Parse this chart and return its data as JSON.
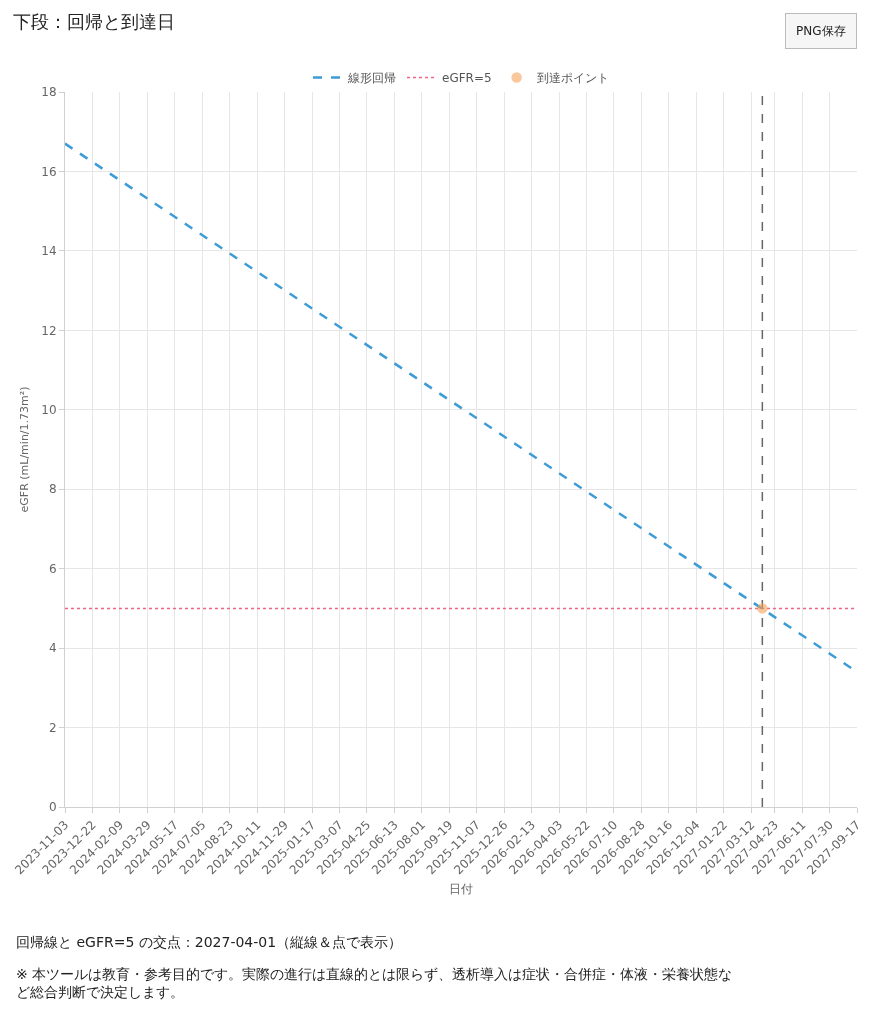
{
  "chart_data": {
    "type": "line",
    "title": "下段：回帰と到達日",
    "xlabel": "日付",
    "ylabel": "eGFR (mL/min/1.73m²)",
    "series": [
      {
        "name": "線形回帰",
        "color": "#3d9bd6",
        "line_style": "dashed",
        "marker": "none",
        "x": [
          "2023-11-03",
          "2027-09-17"
        ],
        "values": [
          16.7,
          3.4
        ]
      },
      {
        "name": "到達ポイント",
        "type": "scatter",
        "color": "#f5a35c",
        "marker": "circle",
        "x": [
          "2027-04-01"
        ],
        "values": [
          5
        ]
      }
    ],
    "ref_lines": [
      {
        "axis": "y",
        "value": 5,
        "label": "eGFR=5",
        "color": "#f06585",
        "line_style": "dotted"
      },
      {
        "axis": "x",
        "value": "2027-04-01",
        "color": "#666666",
        "line_style": "dashed"
      }
    ],
    "xlim": [
      "2023-11-03",
      "2027-09-17"
    ],
    "xticks": [
      "2023-11-03",
      "2023-12-22",
      "2024-02-09",
      "2024-03-29",
      "2024-05-17",
      "2024-07-05",
      "2024-08-23",
      "2024-10-11",
      "2024-11-29",
      "2025-01-17",
      "2025-03-07",
      "2025-04-25",
      "2025-06-13",
      "2025-08-01",
      "2025-09-19",
      "2025-11-07",
      "2025-12-26",
      "2026-02-13",
      "2026-04-03",
      "2026-05-22",
      "2026-07-10",
      "2026-08-28",
      "2026-10-16",
      "2026-12-04",
      "2027-01-22",
      "2027-03-12",
      "2027-04-23",
      "2027-06-11",
      "2027-07-30",
      "2027-09-17"
    ],
    "ylim": [
      0,
      18
    ],
    "yticks": [
      0,
      2,
      4,
      6,
      8,
      10,
      12,
      14,
      16,
      18
    ],
    "grid": true,
    "legend": "top",
    "annotations": [
      "PNG保存",
      "回帰線と eGFR=5 の交点：2027-04-01（縦線＆点で表示）",
      "※ 本ツールは教育・参考目的です。実際の進行は直線的とは限らず、透析導入は症状・合併症・体液・栄養状態など総合判断で決定します。"
    ]
  }
}
